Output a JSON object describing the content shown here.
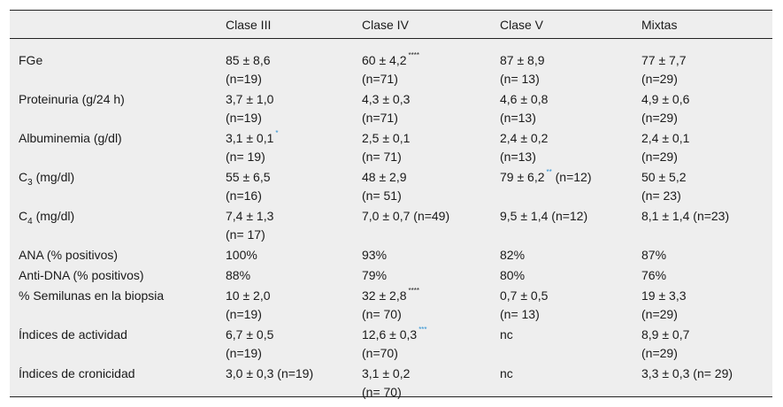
{
  "columns": [
    "",
    "Clase III",
    "Clase IV",
    "Clase V",
    "Mixtas"
  ],
  "rows": [
    {
      "label": "FGe",
      "cells": [
        {
          "v": "85 ± 8,6",
          "n": "(n=19)"
        },
        {
          "v": "60 ± 4,2",
          "mark": "****",
          "n": "(n=71)"
        },
        {
          "v": "87 ± 8,9",
          "n": "(n= 13)"
        },
        {
          "v": "77 ± 7,7",
          "n": "(n=29)"
        }
      ]
    },
    {
      "label": "Proteinuria (g/24 h)",
      "cells": [
        {
          "v": "3,7 ± 1,0",
          "n": "(n=19)"
        },
        {
          "v": "4,3 ± 0,3",
          "n": "(n=71)"
        },
        {
          "v": "4,6 ± 0,8",
          "n": "(n=13)"
        },
        {
          "v": "4,9 ± 0,6",
          "n": "(n=29)"
        }
      ]
    },
    {
      "label": "Albuminemia (g/dl)",
      "cells": [
        {
          "v": "3,1 ± 0,1",
          "mark": "*",
          "n": "(n= 19)"
        },
        {
          "v": "2,5 ± 0,1",
          "n": "(n= 71)"
        },
        {
          "v": "2,4 ± 0,2",
          "n": "(n=13)"
        },
        {
          "v": "2,4 ± 0,1",
          "n": "(n=29)"
        }
      ]
    },
    {
      "label_pre": "C",
      "label_sub": "3",
      "label_post": " (mg/dl)",
      "cells": [
        {
          "v": "55 ± 6,5",
          "n": "(n=16)"
        },
        {
          "v": "48 ± 2,9",
          "n": "(n= 51)"
        },
        {
          "v": "79 ± 6,2",
          "mark": "**",
          "after": " (n=12)"
        },
        {
          "v": "50 ± 5,2",
          "n": "(n= 23)"
        }
      ]
    },
    {
      "label_pre": "C",
      "label_sub": "4",
      "label_post": " (mg/dl)",
      "cells": [
        {
          "v": "7,4 ± 1,3",
          "n": "(n= 17)"
        },
        {
          "v": "7,0 ± 0,7 (n=49)"
        },
        {
          "v": "9,5 ± 1,4 (n=12)"
        },
        {
          "v": "8,1 ± 1,4 (n=23)"
        }
      ]
    },
    {
      "label": "ANA (% positivos)",
      "cells": [
        {
          "v": "100%"
        },
        {
          "v": "93%"
        },
        {
          "v": "82%"
        },
        {
          "v": "87%"
        }
      ]
    },
    {
      "label": "Anti-DNA (% positivos)",
      "cells": [
        {
          "v": "88%"
        },
        {
          "v": "79%"
        },
        {
          "v": "80%"
        },
        {
          "v": "76%"
        }
      ]
    },
    {
      "label": "% Semilunas en la biopsia",
      "cells": [
        {
          "v": "10 ± 2,0",
          "n": "(n=19)"
        },
        {
          "v": "32 ± 2,8",
          "mark": "****",
          "n": "(n= 70)"
        },
        {
          "v": "0,7 ± 0,5",
          "n": "(n= 13)"
        },
        {
          "v": "19 ± 3,3",
          "n": "(n=29)"
        }
      ]
    },
    {
      "label": "Índices de actividad",
      "cells": [
        {
          "v": "6,7 ± 0,5",
          "n": "(n=19)"
        },
        {
          "v": "12,6 ± 0,3",
          "mark": "***",
          "n": "(n=70)"
        },
        {
          "v": "nc"
        },
        {
          "v": "8,9 ± 0,7",
          "n": "(n=29)"
        }
      ]
    },
    {
      "label": "Índices de cronicidad",
      "cells": [
        {
          "v": "3,0 ± 0,3 (n=19)"
        },
        {
          "v": "3,1 ± 0,2",
          "n": "(n= 70)"
        },
        {
          "v": "nc"
        },
        {
          "v": "3,3 ± 0,3 (n= 29)"
        }
      ]
    }
  ],
  "style": {
    "header_bg": "#eeeeee",
    "mark_color_black": "#1a1a1a",
    "mark_color_blue": "#2a8fd1"
  }
}
